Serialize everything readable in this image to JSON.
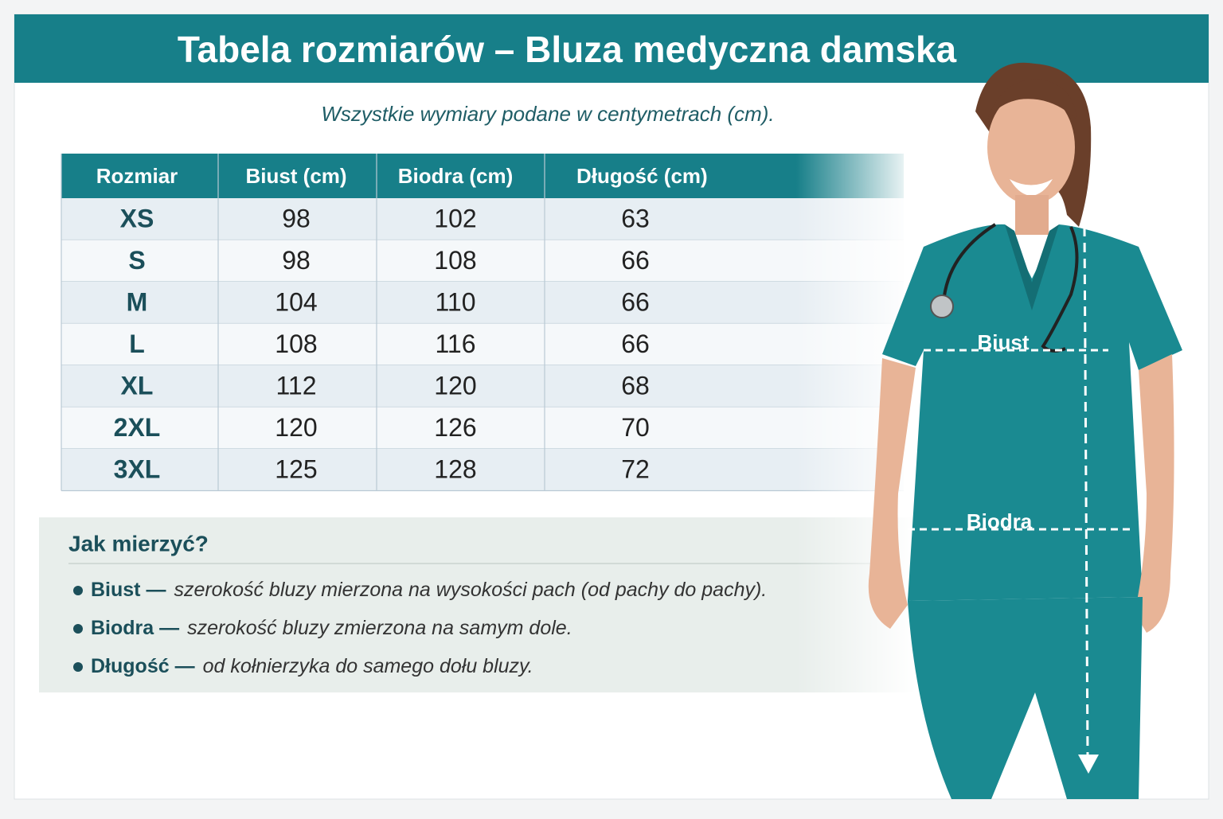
{
  "header": {
    "title": "Tabela rozmiarów – Bluza medyczna damska"
  },
  "subtitle": "Wszystkie wymiary podane w centymetrach (cm).",
  "table": {
    "headers": [
      "Rozmiar",
      "Biust (cm)",
      "Biodra (cm)",
      "Długość (cm)"
    ],
    "rows": [
      [
        "XS",
        98,
        102,
        63
      ],
      [
        "S",
        98,
        108,
        66
      ],
      [
        "M",
        104,
        110,
        66
      ],
      [
        "L",
        108,
        116,
        66
      ],
      [
        "XL",
        112,
        120,
        68
      ],
      [
        "2XL",
        120,
        126,
        70
      ],
      [
        "3XL",
        125,
        128,
        72
      ]
    ]
  },
  "figure": {
    "chest_label": "Biust",
    "hips_label": "Biodra"
  },
  "howto": {
    "title": "Jak mierzyć?",
    "items": [
      {
        "term": "Biust —",
        "text": "szerokość bluzy mierzona na wysokości pach (od pachy do pachy)."
      },
      {
        "term": "Biodra —",
        "text": "szerokość bluzy zmierzona na samym dole."
      },
      {
        "term": "Długość —",
        "text": "od kołnierzyka do samego dołu bluzy."
      }
    ]
  }
}
